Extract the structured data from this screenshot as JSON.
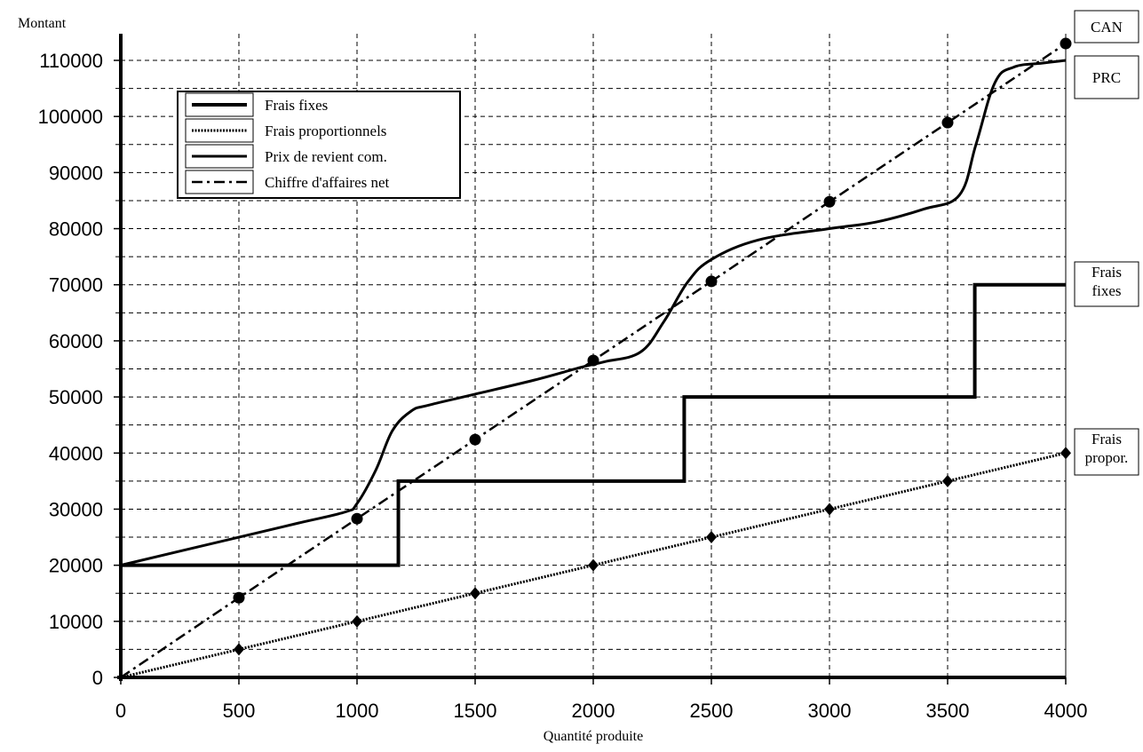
{
  "chart_data": {
    "type": "line",
    "ylabel": "Montant",
    "xlabel": "Quantité produite",
    "xlim": [
      0,
      4000
    ],
    "ylim": [
      0,
      115000
    ],
    "x_ticks": [
      0,
      500,
      1000,
      1500,
      2000,
      2500,
      3000,
      3500,
      4000
    ],
    "y_ticks": [
      0,
      10000,
      20000,
      30000,
      40000,
      50000,
      60000,
      70000,
      80000,
      90000,
      100000,
      110000
    ],
    "x_tick_labels": [
      "0",
      "500",
      "1000",
      "1500",
      "2000",
      "2500",
      "3000",
      "3500",
      "4000"
    ],
    "y_tick_labels": [
      "0",
      "10000",
      "20000",
      "30000",
      "40000",
      "50000",
      "60000",
      "70000",
      "80000",
      "90000",
      "100000",
      "110000"
    ],
    "grid": true,
    "legend_position": "top-left",
    "series": [
      {
        "name": "Frais fixes",
        "style": "thick-solid",
        "color": "#000000",
        "x": [
          0,
          1175,
          1175,
          2385,
          2385,
          3615,
          3615,
          4000
        ],
        "y": [
          20000,
          20000,
          35000,
          35000,
          50000,
          50000,
          70000,
          70000
        ]
      },
      {
        "name": "Frais proportionnels",
        "style": "dotted",
        "marker": "diamond",
        "color": "#000000",
        "x": [
          0,
          500,
          1000,
          1500,
          2000,
          2500,
          3000,
          3500,
          4000
        ],
        "y": [
          0,
          5000,
          10000,
          15000,
          20000,
          25000,
          30000,
          35000,
          40000
        ]
      },
      {
        "name": "Prix de revient com.",
        "style": "solid",
        "color": "#000000",
        "x": [
          0,
          500,
          750,
          950,
          1000,
          1080,
          1150,
          1230,
          1300,
          1500,
          1750,
          1950,
          2050,
          2200,
          2300,
          2400,
          2500,
          2700,
          3000,
          3200,
          3400,
          3550,
          3620,
          3700,
          3780,
          3900,
          4000
        ],
        "y": [
          20000,
          25000,
          27500,
          29500,
          31000,
          37000,
          44000,
          47500,
          48500,
          50500,
          53000,
          55300,
          56300,
          58000,
          63500,
          70500,
          74500,
          78000,
          80000,
          81200,
          83500,
          86000,
          95000,
          106000,
          108800,
          109500,
          110000
        ]
      },
      {
        "name": "Chiffre d'affaires net",
        "style": "dash-dot",
        "marker": "circle",
        "color": "#000000",
        "x": [
          0,
          500,
          1000,
          1500,
          2000,
          2500,
          3000,
          3500,
          4000
        ],
        "y": [
          0,
          14200,
          28300,
          42400,
          56500,
          70600,
          84800,
          98900,
          113000
        ]
      }
    ],
    "annotations": [
      {
        "text": [
          "CAN"
        ],
        "series": "Chiffre d'affaires net"
      },
      {
        "text": [
          "PRC"
        ],
        "series": "Prix de revient com."
      },
      {
        "text": [
          "Frais",
          "fixes"
        ],
        "series": "Frais fixes"
      },
      {
        "text": [
          "Frais",
          "propor."
        ],
        "series": "Frais proportionnels"
      }
    ]
  }
}
